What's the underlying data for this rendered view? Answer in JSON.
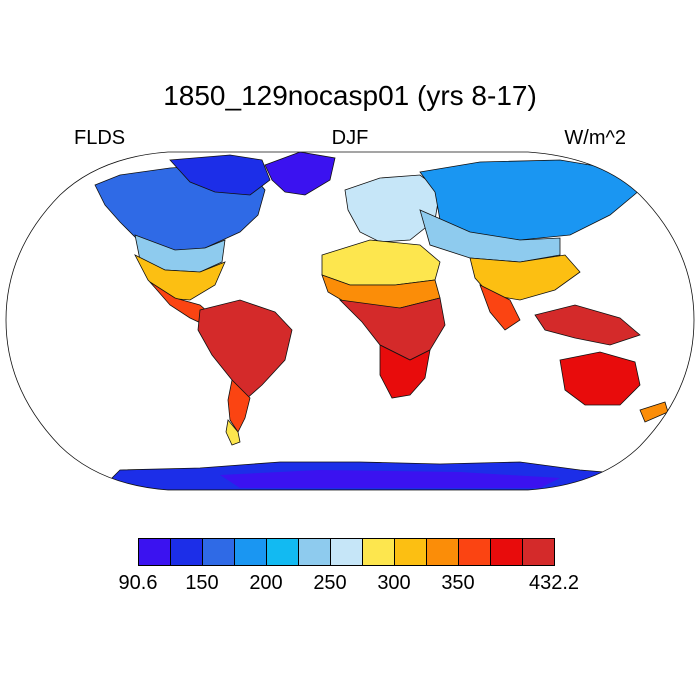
{
  "title": "1850_129nocasp01 (yrs 8-17)",
  "left_label": "FLDS",
  "center_label": "DJF",
  "right_label": "W/m^2",
  "colorbar": {
    "colors": [
      "#3b12f0",
      "#1c2ee8",
      "#2f6ae6",
      "#1a96f2",
      "#12baf2",
      "#8ecbee",
      "#c6e6f8",
      "#fde64e",
      "#fcbf12",
      "#fb8d08",
      "#fb4412",
      "#e80c0c",
      "#d42a2a"
    ],
    "labels": [
      {
        "text": "90.6",
        "boundary": 0
      },
      {
        "text": "150",
        "boundary": 2
      },
      {
        "text": "200",
        "boundary": 4
      },
      {
        "text": "250",
        "boundary": 6
      },
      {
        "text": "300",
        "boundary": 8
      },
      {
        "text": "350",
        "boundary": 10
      },
      {
        "text": "432.2",
        "boundary": 13
      }
    ]
  }
}
